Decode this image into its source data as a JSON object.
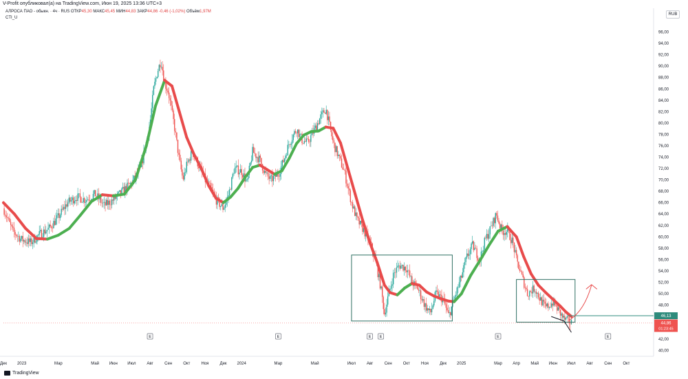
{
  "header": {
    "published": "V-Profit опубликовал(а) на TradingView.com, Июн 19, 2025 13:36 UTC+3",
    "symbol": "АЛРОСА ПАО - обыкн. · 4ч · RUS",
    "open_label": "ОТКР",
    "open_value": "45,30",
    "high_label": "МАКС",
    "high_value": "45,45",
    "low_label": "МИН",
    "low_value": "44,83",
    "close_label": "ЗАКР",
    "close_value": "44,86",
    "change": "-0,46 (-1,02%)",
    "volume_label": "Объём",
    "volume_value": "1,97M",
    "indicator": "CTI_U",
    "currency": "RUB"
  },
  "footer": {
    "brand": "TradingView"
  },
  "chart_data": {
    "type": "candlestick",
    "title": "АЛРОСА ПАО - обыкн. · 4ч · RUS",
    "ylabel": "RUB",
    "ylim": [
      39,
      98
    ],
    "y_ticks": [
      "96,00",
      "94,00",
      "92,00",
      "90,00",
      "88,00",
      "86,00",
      "84,00",
      "82,00",
      "80,00",
      "78,00",
      "76,00",
      "74,00",
      "72,00",
      "70,00",
      "68,00",
      "66,00",
      "64,00",
      "62,00",
      "60,00",
      "58,00",
      "56,00",
      "54,00",
      "52,00",
      "50,00",
      "48,00",
      "46,00",
      "44,00",
      "42,00",
      "40,00"
    ],
    "x_ticks": [
      {
        "label": "Дек",
        "t": 0.0
      },
      {
        "label": "2023",
        "t": 1.0
      },
      {
        "label": "Мар",
        "t": 3.0
      },
      {
        "label": "Май",
        "t": 5.0
      },
      {
        "label": "Июн",
        "t": 6.0
      },
      {
        "label": "Июл",
        "t": 7.0
      },
      {
        "label": "Авг",
        "t": 8.0
      },
      {
        "label": "Сен",
        "t": 9.0
      },
      {
        "label": "Окт",
        "t": 10.0
      },
      {
        "label": "Ноя",
        "t": 11.0
      },
      {
        "label": "Дек",
        "t": 12.0
      },
      {
        "label": "2024",
        "t": 13.0
      },
      {
        "label": "Мар",
        "t": 15.0
      },
      {
        "label": "Май",
        "t": 17.0
      },
      {
        "label": "Июл",
        "t": 19.0
      },
      {
        "label": "Авг",
        "t": 20.0
      },
      {
        "label": "Сен",
        "t": 21.0
      },
      {
        "label": "Окт",
        "t": 22.0
      },
      {
        "label": "Ноя",
        "t": 23.0
      },
      {
        "label": "Дек",
        "t": 24.0
      },
      {
        "label": "2025",
        "t": 25.0
      },
      {
        "label": "Мар",
        "t": 27.0
      },
      {
        "label": "Апр",
        "t": 28.0
      },
      {
        "label": "Май",
        "t": 29.0
      },
      {
        "label": "Июн",
        "t": 30.0
      },
      {
        "label": "Июл",
        "t": 31.0
      },
      {
        "label": "Авг",
        "t": 32.0
      },
      {
        "label": "Сен",
        "t": 33.0
      },
      {
        "label": "Окт",
        "t": 34.0
      }
    ],
    "price_path": [
      [
        0.0,
        65.0
      ],
      [
        0.5,
        61.0
      ],
      [
        1.0,
        59.5
      ],
      [
        1.5,
        59.0
      ],
      [
        2.0,
        60.5
      ],
      [
        2.5,
        61.5
      ],
      [
        3.0,
        63.5
      ],
      [
        3.5,
        66.0
      ],
      [
        4.0,
        67.0
      ],
      [
        4.5,
        66.5
      ],
      [
        5.0,
        67.5
      ],
      [
        5.5,
        65.5
      ],
      [
        6.0,
        66.5
      ],
      [
        6.5,
        68.0
      ],
      [
        7.0,
        69.5
      ],
      [
        7.5,
        72.0
      ],
      [
        8.0,
        80.0
      ],
      [
        8.2,
        86.0
      ],
      [
        8.4,
        89.0
      ],
      [
        8.6,
        91.0
      ],
      [
        8.8,
        87.0
      ],
      [
        9.0,
        85.5
      ],
      [
        9.3,
        80.0
      ],
      [
        9.6,
        73.5
      ],
      [
        9.8,
        70.0
      ],
      [
        10.0,
        72.5
      ],
      [
        10.3,
        75.0
      ],
      [
        10.6,
        73.0
      ],
      [
        11.0,
        70.0
      ],
      [
        11.3,
        68.5
      ],
      [
        11.6,
        66.5
      ],
      [
        12.0,
        65.0
      ],
      [
        12.3,
        67.5
      ],
      [
        12.6,
        72.0
      ],
      [
        13.0,
        71.5
      ],
      [
        13.3,
        69.5
      ],
      [
        13.6,
        75.0
      ],
      [
        14.0,
        73.5
      ],
      [
        14.3,
        71.0
      ],
      [
        14.6,
        70.0
      ],
      [
        15.0,
        71.0
      ],
      [
        15.3,
        73.5
      ],
      [
        15.6,
        76.5
      ],
      [
        16.0,
        79.0
      ],
      [
        16.3,
        77.0
      ],
      [
        16.6,
        76.5
      ],
      [
        17.0,
        79.0
      ],
      [
        17.3,
        81.0
      ],
      [
        17.6,
        82.5
      ],
      [
        18.0,
        76.5
      ],
      [
        18.3,
        74.0
      ],
      [
        18.6,
        71.5
      ],
      [
        19.0,
        66.0
      ],
      [
        19.3,
        63.0
      ],
      [
        19.6,
        61.5
      ],
      [
        20.0,
        59.0
      ],
      [
        20.3,
        56.0
      ],
      [
        20.6,
        51.0
      ],
      [
        20.8,
        46.5
      ],
      [
        21.0,
        49.5
      ],
      [
        21.3,
        53.5
      ],
      [
        21.6,
        55.0
      ],
      [
        22.0,
        54.5
      ],
      [
        22.3,
        52.0
      ],
      [
        22.6,
        51.0
      ],
      [
        23.0,
        48.0
      ],
      [
        23.3,
        46.5
      ],
      [
        23.6,
        50.0
      ],
      [
        24.0,
        49.0
      ],
      [
        24.3,
        46.0
      ],
      [
        24.6,
        49.0
      ],
      [
        25.0,
        53.0
      ],
      [
        25.3,
        56.5
      ],
      [
        25.6,
        58.5
      ],
      [
        26.0,
        56.0
      ],
      [
        26.3,
        59.5
      ],
      [
        26.6,
        61.5
      ],
      [
        26.9,
        64.0
      ],
      [
        27.2,
        61.0
      ],
      [
        27.5,
        61.0
      ],
      [
        27.8,
        59.0
      ],
      [
        28.0,
        56.0
      ],
      [
        28.3,
        53.0
      ],
      [
        28.6,
        50.0
      ],
      [
        29.0,
        51.0
      ],
      [
        29.3,
        49.0
      ],
      [
        29.6,
        47.5
      ],
      [
        30.0,
        48.5
      ],
      [
        30.3,
        47.0
      ],
      [
        30.6,
        45.5
      ],
      [
        31.0,
        44.86
      ]
    ],
    "series": [
      {
        "name": "CTI_U",
        "values": [
          [
            0.0,
            66.0
          ],
          [
            0.6,
            64.0
          ],
          [
            1.2,
            61.5
          ],
          [
            1.8,
            59.7
          ],
          [
            2.4,
            59.6
          ],
          [
            3.0,
            60.3
          ],
          [
            3.6,
            61.5
          ],
          [
            4.2,
            63.8
          ],
          [
            4.8,
            66.2
          ],
          [
            5.4,
            67.4
          ],
          [
            6.0,
            67.2
          ],
          [
            6.6,
            67.5
          ],
          [
            7.2,
            70.0
          ],
          [
            7.8,
            76.0
          ],
          [
            8.3,
            83.0
          ],
          [
            8.8,
            87.5
          ],
          [
            9.2,
            86.5
          ],
          [
            9.6,
            82.0
          ],
          [
            10.0,
            77.5
          ],
          [
            10.4,
            74.5
          ],
          [
            10.8,
            72.0
          ],
          [
            11.2,
            69.0
          ],
          [
            11.6,
            66.8
          ],
          [
            12.0,
            66.0
          ],
          [
            12.4,
            67.0
          ],
          [
            12.8,
            68.5
          ],
          [
            13.2,
            70.5
          ],
          [
            13.6,
            72.2
          ],
          [
            14.0,
            72.6
          ],
          [
            14.4,
            71.8
          ],
          [
            14.8,
            71.0
          ],
          [
            15.2,
            71.6
          ],
          [
            15.6,
            73.8
          ],
          [
            16.0,
            76.4
          ],
          [
            16.4,
            77.9
          ],
          [
            16.8,
            78.5
          ],
          [
            17.2,
            78.6
          ],
          [
            17.6,
            79.3
          ],
          [
            18.0,
            79.1
          ],
          [
            18.4,
            76.5
          ],
          [
            18.8,
            72.0
          ],
          [
            19.2,
            67.5
          ],
          [
            19.6,
            63.0
          ],
          [
            20.0,
            59.0
          ],
          [
            20.4,
            55.5
          ],
          [
            20.8,
            51.5
          ],
          [
            21.1,
            50.2
          ],
          [
            21.5,
            49.8
          ],
          [
            21.9,
            51.0
          ],
          [
            22.3,
            51.8
          ],
          [
            22.7,
            51.5
          ],
          [
            23.1,
            50.3
          ],
          [
            23.5,
            49.6
          ],
          [
            23.9,
            49.1
          ],
          [
            24.3,
            48.7
          ],
          [
            24.6,
            48.6
          ],
          [
            25.0,
            50.0
          ],
          [
            25.5,
            53.2
          ],
          [
            26.0,
            55.8
          ],
          [
            26.5,
            58.5
          ],
          [
            27.0,
            61.0
          ],
          [
            27.5,
            61.8
          ],
          [
            28.0,
            60.0
          ],
          [
            28.4,
            56.5
          ],
          [
            28.8,
            53.5
          ],
          [
            29.2,
            51.5
          ],
          [
            29.6,
            50.2
          ],
          [
            30.0,
            49.0
          ],
          [
            30.4,
            47.8
          ],
          [
            30.7,
            46.8
          ],
          [
            31.0,
            46.0
          ]
        ]
      }
    ],
    "annotations": {
      "box1": {
        "x0": 19.0,
        "x1": 24.5,
        "y0": 45.2,
        "y1": 56.8
      },
      "box2": {
        "x0": 28.0,
        "x1": 31.2,
        "y0": 45.0,
        "y1": 52.5
      },
      "hline_price": 46.13,
      "hline_label": "46,13",
      "last_price_label": "44,86",
      "countdown": "01:23:45",
      "last_price": 44.86,
      "earnings_markers": [
        {
          "label": "E",
          "t": 8.0
        },
        {
          "label": "E",
          "t": 15.0
        },
        {
          "label": "E",
          "t": 20.0
        },
        {
          "label": "E",
          "t": 20.6
        },
        {
          "label": "E",
          "t": 27.0
        },
        {
          "label": "E",
          "t": 33.0
        }
      ]
    }
  }
}
